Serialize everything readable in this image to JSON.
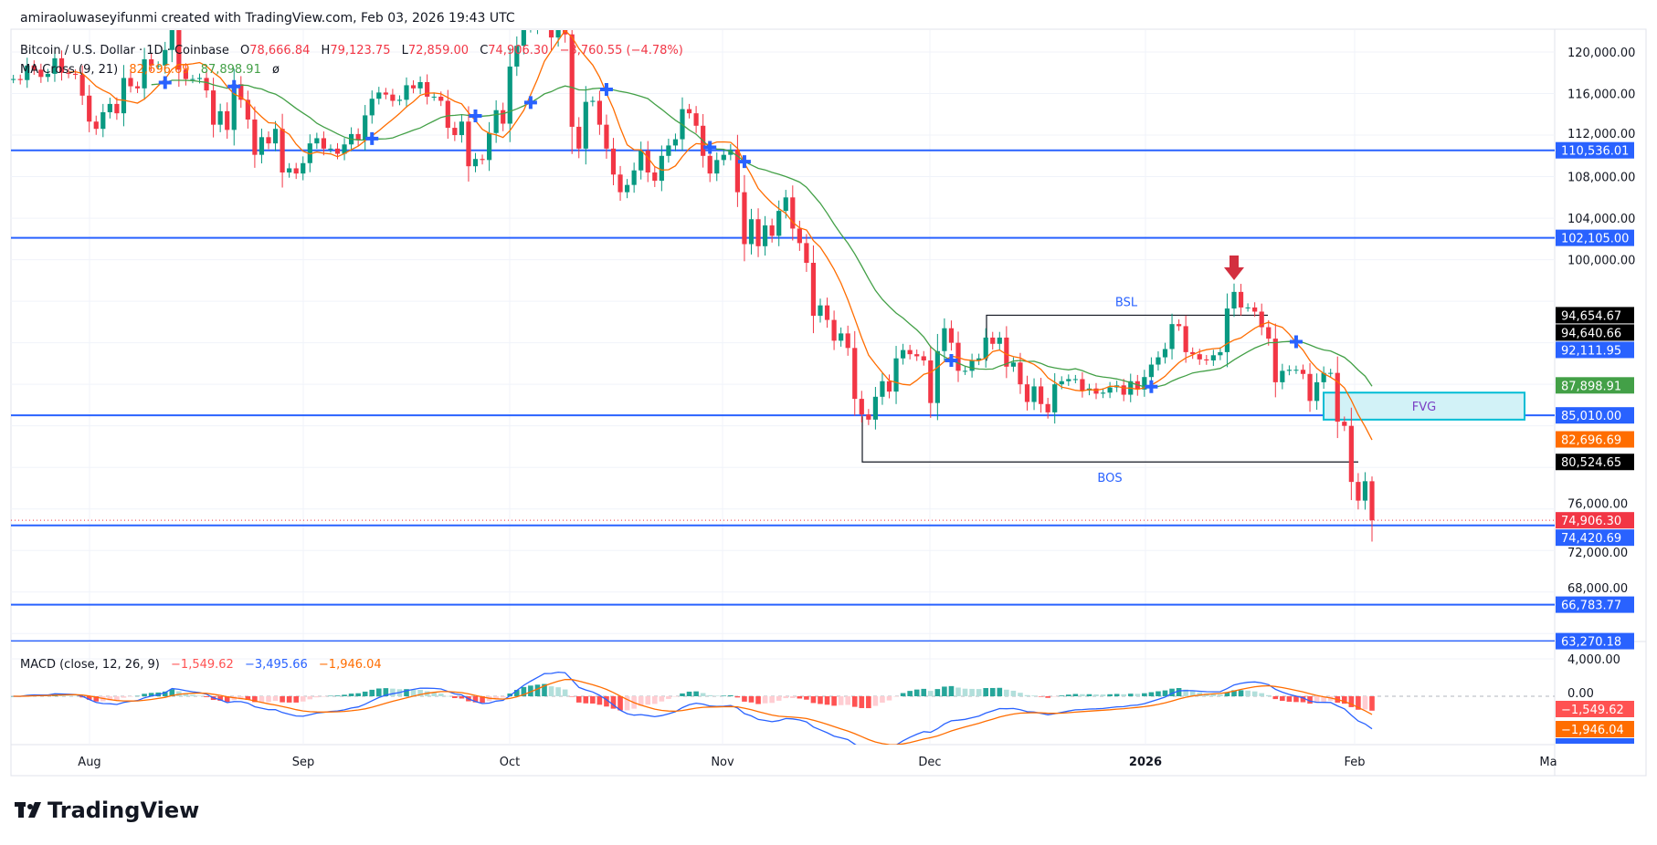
{
  "header": {
    "credit": "amiraoluwaseyifunmi created with TradingView.com, Feb 03, 2026 19:43 UTC"
  },
  "legend": {
    "symbol": "Bitcoin / U.S. Dollar · 1D · Coinbase",
    "o_label": "O",
    "o": "78,666.84",
    "h_label": "H",
    "h": "79,123.75",
    "l_label": "L",
    "l": "72,859.00",
    "c_label": "C",
    "c": "74,906.30",
    "change": "−3,760.55 (−4.78%)",
    "ma_name": "MA Cross (9, 21)",
    "ma_fast": "82,696.69",
    "ma_slow": "87,898.91",
    "ma_extra": "ø"
  },
  "macd_legend": {
    "name": "MACD (close, 12, 26, 9)",
    "hist": "−1,549.62",
    "macd": "−3,495.66",
    "signal": "−1,946.04"
  },
  "annotations": {
    "bsl": "BSL",
    "bos": "BOS",
    "fvg": "FVG"
  },
  "price_axis": [
    "120,000.00",
    "116,000.00",
    "112,000.00",
    "108,000.00",
    "104,000.00",
    "100,000.00",
    "76,000.00",
    "72,000.00",
    "68,000.00"
  ],
  "macd_axis": [
    "4,000.00",
    "0.00"
  ],
  "badges": [
    {
      "text": "110,536.01",
      "color": "#2962ff",
      "price": 110536.01
    },
    {
      "text": "102,105.00",
      "color": "#2962ff",
      "price": 102105.0
    },
    {
      "text": "94,654.67",
      "color": "#000000",
      "price": 94654.67
    },
    {
      "text": "94,640.66",
      "color": "#000000",
      "price": 94640.66
    },
    {
      "text": "92,111.95",
      "color": "#2962ff",
      "price": 92111.95
    },
    {
      "text": "87,898.91",
      "color": "#43a047",
      "price": 87898.91
    },
    {
      "text": "85,010.00",
      "color": "#2962ff",
      "price": 85010.0
    },
    {
      "text": "82,696.69",
      "color": "#ff6d00",
      "price": 82696.69
    },
    {
      "text": "80,524.65",
      "color": "#000000",
      "price": 80524.65
    },
    {
      "text": "74,906.30",
      "color": "#f23645",
      "price": 74906.3
    },
    {
      "text": "74,420.69",
      "color": "#2962ff",
      "price": 74420.69
    },
    {
      "text": "66,783.77",
      "color": "#2962ff",
      "price": 66783.77
    },
    {
      "text": "63,270.18",
      "color": "#2962ff",
      "price": 63270.18
    }
  ],
  "macd_badges": [
    {
      "text": "−1,549.62",
      "color": "#ff5252"
    },
    {
      "text": "−1,946.04",
      "color": "#ff6d00"
    },
    {
      "text": "−3,495.66",
      "color": "#2962ff"
    }
  ],
  "time_axis": [
    "Aug",
    "Sep",
    "Oct",
    "Nov",
    "Dec",
    "2026",
    "Feb",
    "Ma"
  ],
  "logo": "TradingView",
  "colors": {
    "up": "#089981",
    "down": "#f23645",
    "ma_fast": "#ff6d00",
    "ma_slow": "#43a047",
    "level": "#2962ff",
    "macd": "#2962ff",
    "signal": "#ff6d00",
    "fvg_fill": "#d2f2f7",
    "fvg_border": "#00bcd4",
    "fvg_text": "#7b3fc4",
    "arrow": "#d32f3f"
  },
  "chart_data": {
    "type": "candlestick",
    "symbol": "BTCUSD",
    "interval": "1D",
    "first_date": "2025-07-21",
    "last_date": "2026-02-03",
    "unit": "thousand USD",
    "close": [
      117.4,
      117.3,
      118.7,
      118.3,
      117.6,
      117.9,
      119.4,
      118.0,
      117.9,
      117.8,
      115.8,
      113.3,
      112.6,
      114.2,
      115.0,
      114.1,
      117.5,
      116.7,
      116.5,
      119.3,
      118.7,
      118.7,
      120.2,
      123.3,
      118.3,
      117.4,
      117.4,
      117.5,
      116.3,
      113.0,
      114.3,
      112.5,
      116.9,
      115.4,
      113.5,
      110.1,
      111.8,
      111.2,
      112.6,
      108.4,
      108.8,
      108.3,
      109.3,
      111.2,
      111.7,
      110.7,
      110.7,
      110.2,
      111.1,
      112.1,
      111.5,
      113.9,
      115.5,
      116.1,
      115.9,
      115.3,
      115.4,
      116.8,
      116.5,
      117.1,
      115.7,
      115.7,
      115.3,
      112.7,
      112.0,
      113.3,
      109.0,
      109.7,
      109.6,
      112.2,
      114.4,
      113.1,
      118.6,
      120.6,
      122.3,
      122.4,
      123.5,
      124.8,
      121.4,
      123.3,
      121.7,
      112.8,
      110.7,
      115.2,
      115.3,
      113.0,
      110.7,
      108.2,
      106.5,
      107.2,
      108.6,
      110.5,
      108.4,
      107.6,
      110.0,
      111.0,
      111.6,
      114.5,
      114.1,
      112.9,
      110.0,
      108.3,
      109.6,
      110.1,
      110.6,
      106.5,
      101.5,
      103.9,
      101.3,
      103.3,
      102.3,
      104.7,
      106.0,
      103.0,
      101.6,
      99.7,
      94.6,
      95.6,
      94.2,
      92.2,
      92.9,
      91.5,
      86.6,
      85.1,
      84.6,
      86.8,
      88.3,
      87.3,
      90.5,
      91.3,
      90.9,
      90.7,
      90.3,
      86.2,
      91.2,
      93.4,
      92.0,
      89.3,
      89.3,
      90.3,
      90.5,
      92.5,
      91.9,
      92.5,
      89.7,
      90.1,
      88.0,
      86.3,
      87.8,
      86.1,
      85.3,
      88.0,
      88.3,
      88.5,
      88.5,
      87.4,
      87.6,
      87.1,
      87.2,
      87.7,
      87.9,
      87.0,
      88.3,
      87.5,
      88.7,
      89.9,
      90.6,
      91.4,
      93.8,
      93.6,
      91.1,
      90.9,
      90.4,
      90.3,
      90.8,
      91.1,
      95.3,
      96.9,
      95.4,
      95.4,
      95.0,
      93.5,
      92.4,
      88.2,
      89.3,
      89.4,
      89.4,
      89.0,
      86.4,
      88.2,
      89.1,
      89.1,
      84.4,
      84.0,
      78.6,
      76.8,
      78.67,
      74.906
    ],
    "last_candle": {
      "open": 78666.84,
      "high": 79123.75,
      "low": 72859.0,
      "close": 74906.3
    },
    "levels": [
      110536.01,
      102105.0,
      85010.0,
      74420.69,
      66783.77,
      63270.18
    ],
    "bsl_level": 94654.67,
    "bos_level": 80524.65,
    "fvg_range": [
      84600,
      87200
    ],
    "ma_periods": [
      9,
      21
    ],
    "macd_params": [
      12,
      26,
      9
    ],
    "price_range": [
      62000,
      122000
    ],
    "macd_range": [
      -5500,
      5500
    ]
  }
}
